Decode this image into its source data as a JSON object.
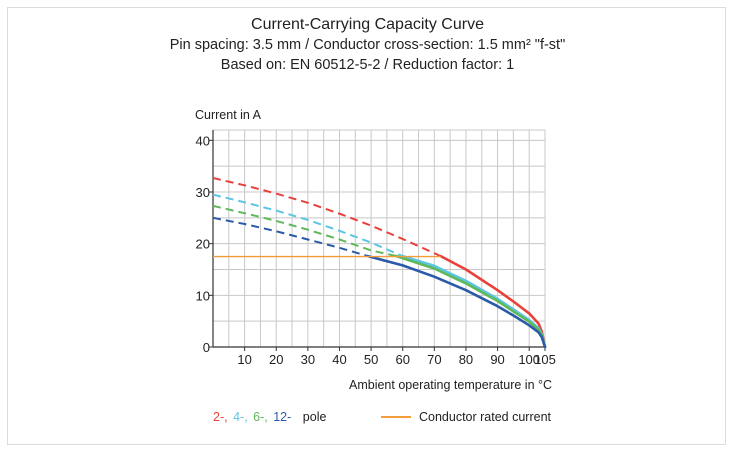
{
  "title_lines": [
    "Current-Carrying Capacity Curve",
    "Pin spacing: 3.5 mm / Conductor cross-section: 1.5 mm² \"f-st\"",
    "Based on: EN 60512-5-2 / Reduction factor: 1"
  ],
  "legend": {
    "poles": [
      {
        "text": "2-,",
        "color": "#e8403a"
      },
      {
        "text": "4-,",
        "color": "#5bc6e3"
      },
      {
        "text": "6-,",
        "color": "#5fb85a"
      },
      {
        "text": "12-",
        "color": "#2b5aa8"
      }
    ],
    "pole_suffix": "pole",
    "rated_label": "Conductor rated current",
    "rated_color": "#f39c3c"
  },
  "chart_data": {
    "type": "line",
    "title": "Current-Carrying Capacity Curve",
    "xlabel": "Ambient operating temperature in °C",
    "ylabel": "Current in A",
    "xlim": [
      0,
      105
    ],
    "ylim": [
      0,
      42
    ],
    "x_ticks": [
      10,
      20,
      30,
      40,
      50,
      60,
      70,
      80,
      90,
      100,
      105
    ],
    "y_ticks": [
      0,
      10,
      20,
      30,
      40
    ],
    "grid": true,
    "series": [
      {
        "name": "2-pole",
        "color": "#e8403a",
        "dashed": {
          "x": [
            0,
            10,
            20,
            30,
            40,
            50,
            60,
            72
          ],
          "y": [
            32.7,
            31.3,
            29.7,
            27.9,
            25.8,
            23.5,
            20.9,
            17.6
          ]
        },
        "solid": {
          "x": [
            72,
            80,
            90,
            95,
            100,
            103,
            104,
            105
          ],
          "y": [
            17.6,
            15.0,
            11.0,
            8.8,
            6.5,
            4.5,
            3.0,
            0
          ]
        }
      },
      {
        "name": "4-pole",
        "color": "#5bc6e3",
        "dashed": {
          "x": [
            0,
            10,
            20,
            30,
            40,
            50,
            60
          ],
          "y": [
            29.5,
            28.0,
            26.4,
            24.6,
            22.5,
            20.2,
            17.6
          ]
        },
        "solid": {
          "x": [
            60,
            70,
            80,
            90,
            95,
            100,
            103,
            104,
            105
          ],
          "y": [
            17.6,
            15.7,
            12.8,
            9.3,
            7.3,
            5.2,
            3.6,
            2.5,
            0
          ]
        }
      },
      {
        "name": "6-pole",
        "color": "#5fb85a",
        "dashed": {
          "x": [
            0,
            10,
            20,
            30,
            40,
            50,
            58
          ],
          "y": [
            27.3,
            25.9,
            24.4,
            22.7,
            20.8,
            18.7,
            17.6
          ]
        },
        "solid": {
          "x": [
            58,
            70,
            80,
            90,
            95,
            100,
            103,
            104,
            105
          ],
          "y": [
            17.6,
            15.2,
            12.3,
            8.9,
            6.9,
            4.9,
            3.3,
            2.3,
            0
          ]
        }
      },
      {
        "name": "12-pole",
        "color": "#2b5aa8",
        "dashed": {
          "x": [
            0,
            10,
            20,
            30,
            40,
            49
          ],
          "y": [
            25.0,
            23.8,
            22.4,
            20.8,
            19.2,
            17.6
          ]
        },
        "solid": {
          "x": [
            49,
            60,
            70,
            80,
            90,
            95,
            100,
            103,
            104,
            105
          ],
          "y": [
            17.6,
            15.8,
            13.6,
            11.0,
            7.9,
            6.1,
            4.2,
            2.8,
            1.9,
            0
          ]
        }
      },
      {
        "name": "Conductor rated current",
        "color": "#f39c3c",
        "x": [
          0,
          72
        ],
        "y": [
          17.5,
          17.5
        ]
      }
    ]
  }
}
